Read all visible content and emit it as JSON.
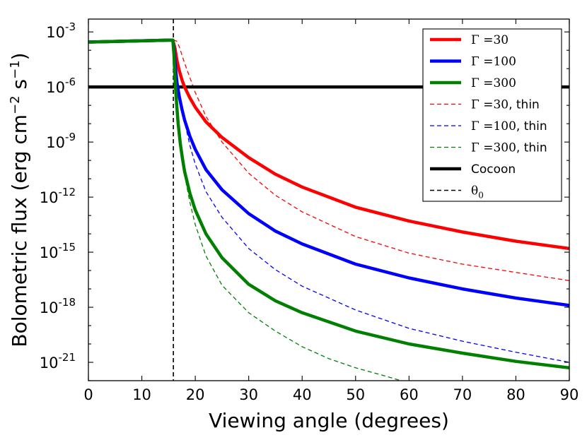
{
  "chart_data": {
    "type": "line",
    "title": "",
    "xlabel": "Viewing angle (degrees)",
    "ylabel_main": "Bolometric flux (erg cm",
    "ylabel_exp1": "−2",
    "ylabel_mid": " s",
    "ylabel_exp2": "−1",
    "ylabel_end": ")",
    "xlim": [
      0,
      90
    ],
    "ylim_log10": [
      -22.0,
      -2.3
    ],
    "x_ticks": [
      {
        "value": 0,
        "label": "0"
      },
      {
        "value": 10,
        "label": "10"
      },
      {
        "value": 20,
        "label": "20"
      },
      {
        "value": 30,
        "label": "30"
      },
      {
        "value": 40,
        "label": "40"
      },
      {
        "value": 50,
        "label": "50"
      },
      {
        "value": 60,
        "label": "60"
      },
      {
        "value": 70,
        "label": "70"
      },
      {
        "value": 80,
        "label": "80"
      },
      {
        "value": 90,
        "label": "90"
      }
    ],
    "y_ticks": [
      {
        "exp": -3,
        "base": "10",
        "sup": "-3"
      },
      {
        "exp": -6,
        "base": "10",
        "sup": "-6"
      },
      {
        "exp": -9,
        "base": "10",
        "sup": "-9"
      },
      {
        "exp": -12,
        "base": "10",
        "sup": "-12"
      },
      {
        "exp": -15,
        "base": "10",
        "sup": "-15"
      },
      {
        "exp": -18,
        "base": "10",
        "sup": "-18"
      },
      {
        "exp": -21,
        "base": "10",
        "sup": "-21"
      }
    ],
    "legend_position": "top-right",
    "series": [
      {
        "key": "g30",
        "name": "Γ =30",
        "legend_math": "Γ =30",
        "legend_suffix": "",
        "color": "#ff0000",
        "style": "solid",
        "x": [
          0,
          15,
          15.8,
          16.2,
          16.6,
          17,
          17.5,
          18,
          19,
          20,
          22,
          25,
          30,
          35,
          40,
          50,
          60,
          70,
          80,
          90
        ],
        "log10_y": [
          -3.55,
          -3.45,
          -3.45,
          -3.9,
          -4.6,
          -5.1,
          -5.6,
          -6.0,
          -6.6,
          -7.1,
          -7.9,
          -8.75,
          -9.85,
          -10.75,
          -11.45,
          -12.55,
          -13.3,
          -13.9,
          -14.4,
          -14.8
        ]
      },
      {
        "key": "g100",
        "name": "Γ =100",
        "legend_math": "Γ =100",
        "legend_suffix": "",
        "color": "#0000ff",
        "style": "solid",
        "x": [
          0,
          15,
          15.8,
          16,
          16.3,
          16.6,
          17,
          17.5,
          18,
          19,
          20,
          22,
          25,
          30,
          35,
          40,
          50,
          60,
          70,
          80,
          90
        ],
        "log10_y": [
          -3.55,
          -3.45,
          -3.45,
          -3.9,
          -5.0,
          -5.8,
          -6.5,
          -7.2,
          -7.8,
          -8.7,
          -9.4,
          -10.5,
          -11.6,
          -12.9,
          -13.85,
          -14.55,
          -15.65,
          -16.4,
          -17.0,
          -17.5,
          -17.9
        ]
      },
      {
        "key": "g300",
        "name": "Γ =300",
        "legend_math": "Γ =300",
        "legend_suffix": "",
        "color": "#008000",
        "style": "solid",
        "x": [
          0,
          15,
          15.8,
          16,
          16.2,
          16.5,
          16.8,
          17.2,
          17.6,
          18,
          19,
          20,
          22,
          25,
          30,
          35,
          40,
          50,
          60,
          70,
          80,
          90
        ],
        "log10_y": [
          -3.55,
          -3.45,
          -3.45,
          -4.2,
          -5.5,
          -6.9,
          -8.0,
          -9.1,
          -9.9,
          -10.6,
          -11.8,
          -12.7,
          -14.0,
          -15.3,
          -16.75,
          -17.65,
          -18.3,
          -19.3,
          -20.0,
          -20.5,
          -20.95,
          -21.3
        ]
      },
      {
        "key": "g30t",
        "name": "Γ =30, thin",
        "legend_math": "Γ =30",
        "legend_suffix": ", thin",
        "color": "#ff0000",
        "style": "dashed",
        "x": [
          0,
          15,
          16,
          16.5,
          17,
          18,
          19,
          20,
          22,
          25,
          30,
          35,
          40,
          50,
          60,
          70,
          80,
          90
        ],
        "log10_y": [
          -3.55,
          -3.45,
          -3.45,
          -3.5,
          -3.8,
          -4.7,
          -5.5,
          -6.3,
          -7.6,
          -9.0,
          -10.7,
          -11.9,
          -12.8,
          -14.15,
          -15.05,
          -15.65,
          -16.1,
          -16.55
        ]
      },
      {
        "key": "g100t",
        "name": "Γ =100, thin",
        "legend_math": "Γ =100",
        "legend_suffix": ", thin",
        "color": "#0000ff",
        "style": "dashed",
        "x": [
          0,
          15,
          15.8,
          16.2,
          16.6,
          17,
          17.5,
          18,
          19,
          20,
          22,
          25,
          30,
          35,
          40,
          50,
          60,
          70,
          80,
          90
        ],
        "log10_y": [
          -3.55,
          -3.45,
          -3.45,
          -4.5,
          -5.5,
          -6.3,
          -7.2,
          -7.9,
          -9.2,
          -10.2,
          -11.7,
          -13.1,
          -14.8,
          -15.95,
          -16.85,
          -18.15,
          -19.15,
          -19.85,
          -20.45,
          -21.0
        ]
      },
      {
        "key": "g300t",
        "name": "Γ =300, thin",
        "legend_math": "Γ =300",
        "legend_suffix": ", thin",
        "color": "#008000",
        "style": "dashed",
        "x": [
          0,
          15,
          15.8,
          16,
          16.3,
          16.6,
          17,
          17.5,
          18,
          19,
          20,
          22,
          25,
          30,
          35,
          40,
          45,
          50,
          55,
          58.5
        ],
        "log10_y": [
          -3.55,
          -3.45,
          -3.45,
          -4.2,
          -6.0,
          -7.4,
          -8.6,
          -9.8,
          -10.8,
          -12.3,
          -13.5,
          -15.2,
          -16.8,
          -18.3,
          -19.3,
          -20.15,
          -20.8,
          -21.3,
          -21.7,
          -22.0
        ]
      }
    ],
    "cocoon": {
      "name": "Cocoon",
      "log10_y": -6.0,
      "color": "#000000"
    },
    "theta0": {
      "name": "θ",
      "sub": "0",
      "x": 15.9,
      "color": "#000000"
    }
  }
}
